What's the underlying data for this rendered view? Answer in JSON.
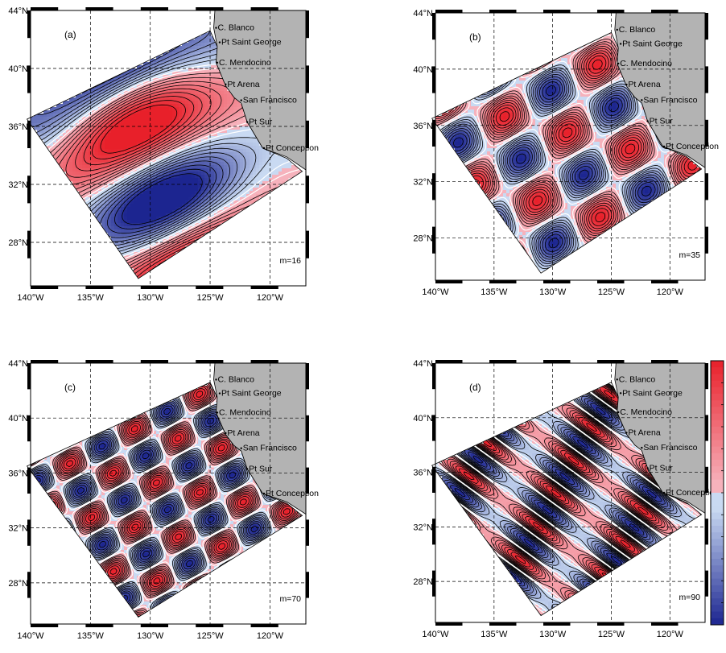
{
  "figure": {
    "colors": {
      "positive": "#e8202a",
      "negative": "#1c2590",
      "neutral": "#c9daf2",
      "land": "#b3b3b3",
      "contour_line": "#000000",
      "zero_line": "#ffffff"
    },
    "axes": {
      "lon_range": [
        -140,
        -117
      ],
      "lat_range": [
        25,
        44
      ],
      "lon_ticks": [
        -140,
        -135,
        -130,
        -125,
        -120
      ],
      "lat_ticks": [
        28,
        32,
        36,
        40,
        44
      ],
      "lon_tick_labels": [
        "140°W",
        "135°W",
        "130°W",
        "125°W",
        "120°W"
      ],
      "lat_tick_labels": [
        "28°N",
        "32°N",
        "36°N",
        "40°N",
        "44°N"
      ],
      "grid": true,
      "grid_style": "dashed"
    },
    "places": [
      {
        "name": "C. Blanco",
        "lon": -124.5,
        "lat": 42.8
      },
      {
        "name": "Pt Saint George",
        "lon": -124.2,
        "lat": 41.8
      },
      {
        "name": "C. Mendocino",
        "lon": -124.4,
        "lat": 40.4
      },
      {
        "name": "Pt Arena",
        "lon": -123.7,
        "lat": 38.9
      },
      {
        "name": "San Francisco",
        "lon": -122.4,
        "lat": 37.8
      },
      {
        "name": "Pt Sur",
        "lon": -121.9,
        "lat": 36.3
      },
      {
        "name": "Pt Conception",
        "lon": -120.5,
        "lat": 34.5
      }
    ],
    "panels": [
      {
        "label": "(a)",
        "mode": "m=16"
      },
      {
        "label": "(b)",
        "mode": "m=35"
      },
      {
        "label": "(c)",
        "mode": "m=70"
      },
      {
        "label": "(d)",
        "mode": "m=90"
      }
    ],
    "colorbar": {
      "position": "right of panel (d)",
      "colors": [
        "#1c2590",
        "#c9daf2",
        "#e8202a"
      ]
    }
  }
}
